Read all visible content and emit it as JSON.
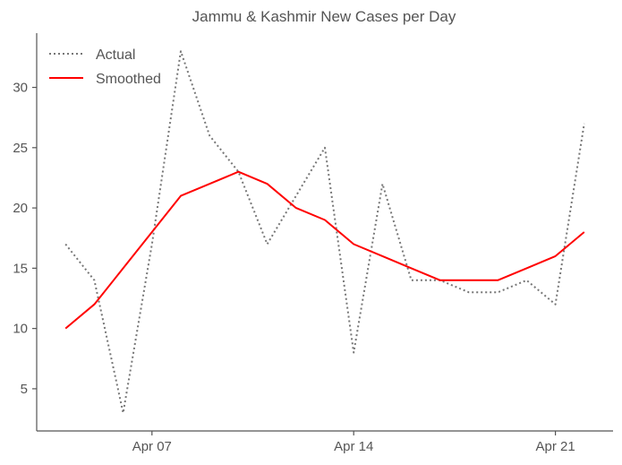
{
  "chart_data": {
    "type": "line",
    "title": "Jammu & Kashmir New Cases per Day",
    "xlabel": "",
    "ylabel": "",
    "x": [
      "Apr 04",
      "Apr 05",
      "Apr 06",
      "Apr 07",
      "Apr 08",
      "Apr 09",
      "Apr 10",
      "Apr 11",
      "Apr 12",
      "Apr 13",
      "Apr 14",
      "Apr 15",
      "Apr 16",
      "Apr 17",
      "Apr 18",
      "Apr 19",
      "Apr 20",
      "Apr 21",
      "Apr 22"
    ],
    "x_ticks": [
      {
        "date": "Apr 07",
        "label": "Apr 07"
      },
      {
        "date": "Apr 14",
        "label": "Apr 14"
      },
      {
        "date": "Apr 21",
        "label": "Apr 21"
      }
    ],
    "x_range": [
      "Apr 03",
      "Apr 23"
    ],
    "yticks": [
      5,
      10,
      15,
      20,
      25,
      30
    ],
    "ylim": [
      1.5,
      34.5
    ],
    "grid": false,
    "legend_position": "top-left",
    "series": [
      {
        "name": "Actual",
        "color": "#777777",
        "style": "dotted",
        "values": [
          17,
          14,
          3,
          17,
          33,
          26,
          23,
          17,
          21,
          25,
          8,
          22,
          14,
          14,
          13,
          13,
          14,
          12,
          27
        ]
      },
      {
        "name": "Smoothed",
        "color": "#ff0000",
        "style": "solid",
        "values": [
          10,
          12,
          15,
          18,
          21,
          22,
          23,
          22,
          20,
          19,
          17,
          16,
          15,
          14,
          14,
          14,
          15,
          16,
          18
        ]
      }
    ]
  }
}
